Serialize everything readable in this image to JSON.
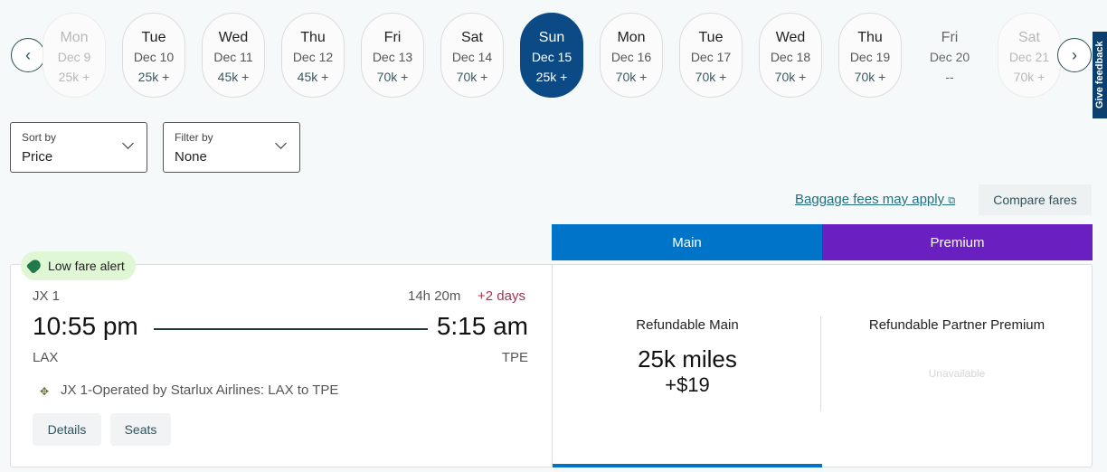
{
  "date_nav": {
    "prev_icon": "chevron-left-icon",
    "next_icon": "chevron-right-icon",
    "dates": [
      {
        "day": "Mon",
        "date": "Dec 9",
        "price": "25k +",
        "state": "faded"
      },
      {
        "day": "Tue",
        "date": "Dec 10",
        "price": "25k +",
        "state": "normal"
      },
      {
        "day": "Wed",
        "date": "Dec 11",
        "price": "45k +",
        "state": "normal"
      },
      {
        "day": "Thu",
        "date": "Dec 12",
        "price": "45k +",
        "state": "normal"
      },
      {
        "day": "Fri",
        "date": "Dec 13",
        "price": "70k +",
        "state": "normal"
      },
      {
        "day": "Sat",
        "date": "Dec 14",
        "price": "70k +",
        "state": "normal"
      },
      {
        "day": "Sun",
        "date": "Dec 15",
        "price": "25k +",
        "state": "selected"
      },
      {
        "day": "Mon",
        "date": "Dec 16",
        "price": "70k +",
        "state": "normal"
      },
      {
        "day": "Tue",
        "date": "Dec 17",
        "price": "70k +",
        "state": "normal"
      },
      {
        "day": "Wed",
        "date": "Dec 18",
        "price": "70k +",
        "state": "normal"
      },
      {
        "day": "Thu",
        "date": "Dec 19",
        "price": "70k +",
        "state": "normal"
      },
      {
        "day": "Fri",
        "date": "Dec 20",
        "price": "--",
        "state": "unavailable"
      },
      {
        "day": "Sat",
        "date": "Dec 21",
        "price": "70k +",
        "state": "faded"
      }
    ]
  },
  "feedback_tab": "Give feedback",
  "sort": {
    "label": "Sort by",
    "value": "Price"
  },
  "filter": {
    "label": "Filter by",
    "value": "None"
  },
  "baggage_link": "Baggage fees may apply",
  "compare_fares": "Compare fares",
  "fare_tabs": {
    "main": "Main",
    "premium": "Premium",
    "main_color": "#0074c8",
    "premium_color": "#6a1fc0"
  },
  "flight": {
    "badge": "Low fare alert",
    "flight_number": "JX 1",
    "duration": "14h 20m",
    "day_offset": "+2 days",
    "depart_time": "10:55 pm",
    "arrive_time": "5:15 am",
    "origin": "LAX",
    "destination": "TPE",
    "operated_by": "JX 1-Operated by Starlux Airlines: LAX to TPE",
    "details_button": "Details",
    "seats_button": "Seats"
  },
  "fares": {
    "main": {
      "name": "Refundable Main",
      "miles": "25k miles",
      "cash": "+$19"
    },
    "premium": {
      "name": "Refundable Partner Premium",
      "status": "Unavailable"
    }
  }
}
